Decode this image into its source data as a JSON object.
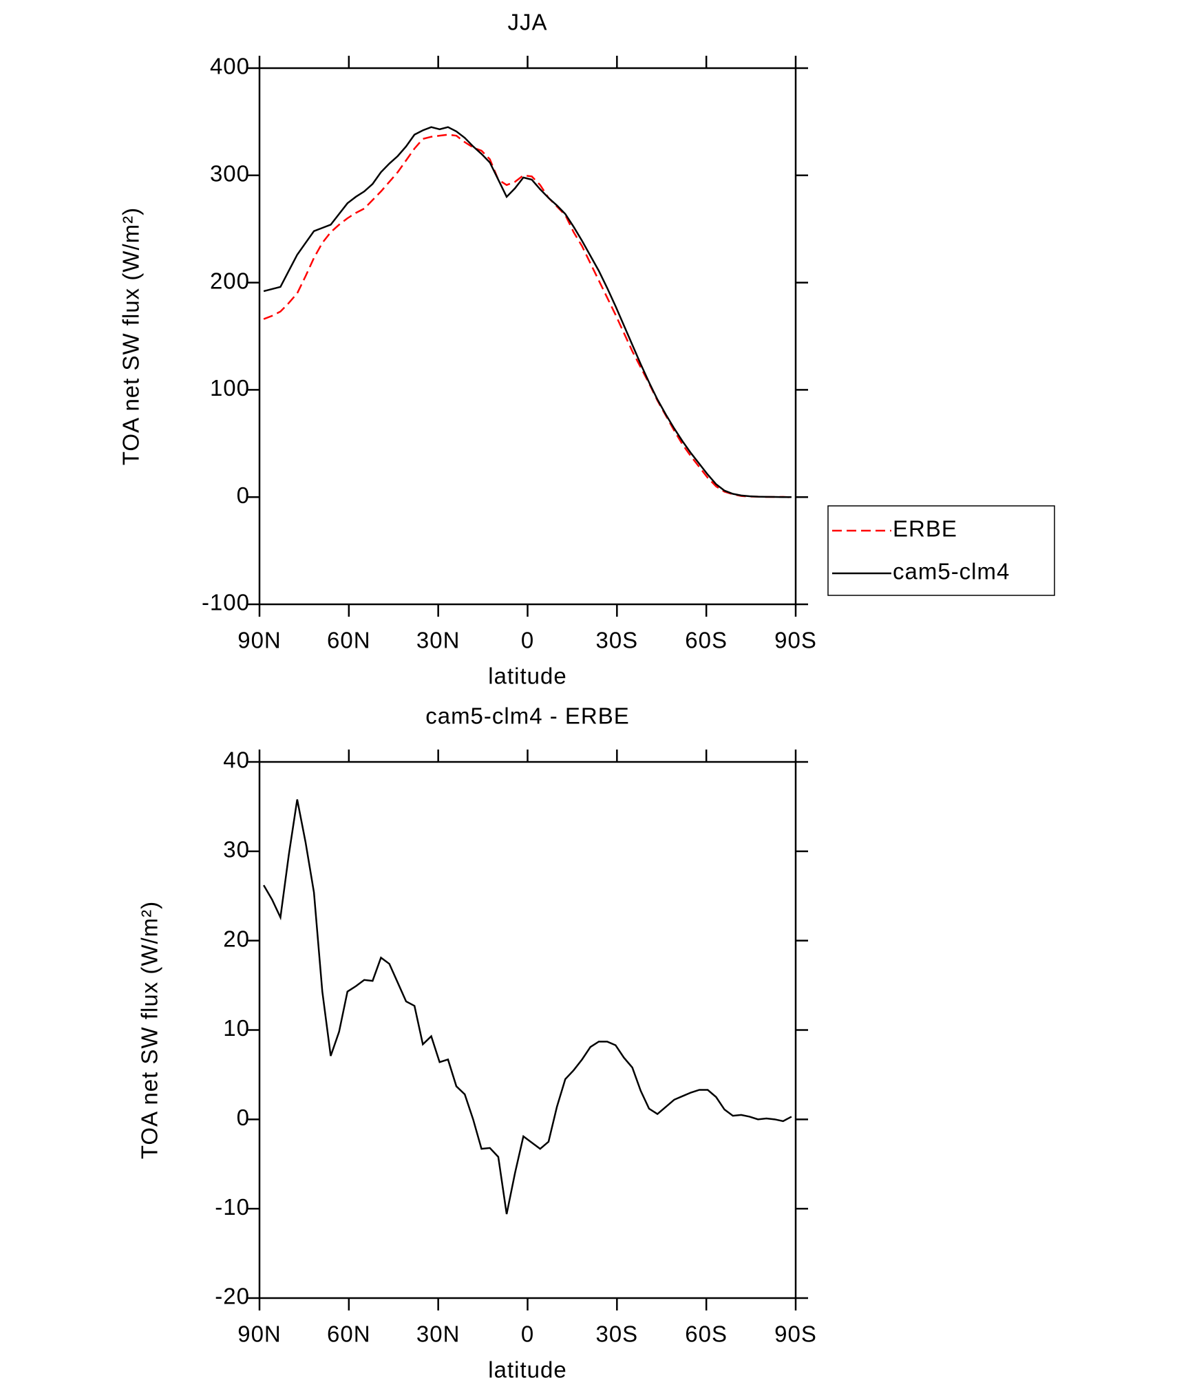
{
  "chart_data": [
    {
      "type": "line",
      "title": "JJA",
      "x_label": "latitude",
      "y_label": "TOA net SW flux (W/m²)",
      "x": [
        88.59,
        85.78,
        82.97,
        80.16,
        77.34,
        74.53,
        71.72,
        68.91,
        66.09,
        63.28,
        60.47,
        57.66,
        54.84,
        52.03,
        49.22,
        46.41,
        43.59,
        40.78,
        37.97,
        35.16,
        32.34,
        29.53,
        26.72,
        23.91,
        21.09,
        18.28,
        15.47,
        12.66,
        9.84,
        7.03,
        4.22,
        1.41,
        -1.41,
        -4.22,
        -7.03,
        -9.84,
        -12.66,
        -15.47,
        -18.28,
        -21.09,
        -23.91,
        -26.72,
        -29.53,
        -32.34,
        -35.16,
        -37.97,
        -40.78,
        -43.59,
        -46.41,
        -49.22,
        -52.03,
        -54.84,
        -57.66,
        -60.47,
        -63.28,
        -66.09,
        -68.91,
        -71.72,
        -74.53,
        -77.34,
        -80.16,
        -82.97,
        -85.78,
        -88.59
      ],
      "series": [
        {
          "name": "ERBE",
          "color": "#ff0000",
          "line_style": "dashed",
          "values": [
            166,
            169,
            173,
            181,
            190,
            206,
            223,
            237,
            247,
            254,
            260,
            265,
            269,
            277,
            285,
            294,
            303,
            314,
            325,
            334,
            336,
            337,
            338,
            337,
            331,
            326,
            323,
            315,
            296,
            291,
            294,
            300,
            299,
            291,
            279,
            271,
            263,
            247,
            234,
            218,
            202,
            186,
            170,
            153,
            136,
            121,
            106,
            90,
            76,
            62,
            49,
            38,
            28,
            18,
            10,
            5,
            2.6,
            1,
            0.5,
            0.4,
            0.1,
            0.1,
            0.2,
            -0.3
          ]
        },
        {
          "name": "cam5-clm4",
          "color": "#000000",
          "line_style": "solid",
          "values": [
            192,
            194,
            196,
            211,
            226,
            237,
            248,
            251,
            254,
            264,
            274,
            280,
            285,
            292,
            303,
            311,
            318,
            327,
            338,
            342,
            345,
            343,
            345,
            341,
            335,
            327,
            320,
            312,
            296,
            280,
            288,
            298,
            296,
            287,
            279,
            272,
            264,
            252,
            239,
            225,
            211,
            195,
            178,
            160,
            142,
            124,
            107,
            91,
            77,
            64,
            52,
            41,
            31,
            21,
            12,
            6,
            3,
            1.5,
            0.8,
            0.4,
            0.2,
            0.1,
            0,
            0
          ]
        }
      ],
      "xlim": [
        90,
        -90
      ],
      "xticks": [
        {
          "value": 90,
          "label": "90N"
        },
        {
          "value": 60,
          "label": "60N"
        },
        {
          "value": 30,
          "label": "30N"
        },
        0,
        {
          "value": -30,
          "label": "30S"
        },
        {
          "value": -60,
          "label": "60S"
        },
        {
          "value": -90,
          "label": "90S"
        }
      ],
      "ylim": [
        -100,
        400
      ],
      "yticks": [
        -100,
        0,
        100,
        200,
        300,
        400
      ],
      "legend": "right"
    },
    {
      "type": "line",
      "title": "cam5-clm4 - ERBE",
      "x_label": "latitude",
      "y_label": "TOA net SW flux (W/m²)",
      "x": [
        88.59,
        85.78,
        82.97,
        80.16,
        77.34,
        74.53,
        71.72,
        68.91,
        66.09,
        63.28,
        60.47,
        57.66,
        54.84,
        52.03,
        49.22,
        46.41,
        43.59,
        40.78,
        37.97,
        35.16,
        32.34,
        29.53,
        26.72,
        23.91,
        21.09,
        18.28,
        15.47,
        12.66,
        9.84,
        7.03,
        4.22,
        1.41,
        -1.41,
        -4.22,
        -7.03,
        -9.84,
        -12.66,
        -15.47,
        -18.28,
        -21.09,
        -23.91,
        -26.72,
        -29.53,
        -32.34,
        -35.16,
        -37.97,
        -40.78,
        -43.59,
        -46.41,
        -49.22,
        -52.03,
        -54.84,
        -57.66,
        -60.47,
        -63.28,
        -66.09,
        -68.91,
        -71.72,
        -74.53,
        -77.34,
        -80.16,
        -82.97,
        -85.78,
        -88.59
      ],
      "color": "#000000",
      "values": [
        26.2,
        24.6,
        22.6,
        29.6,
        35.8,
        31,
        25.4,
        14.3,
        7.1,
        9.8,
        14.3,
        14.9,
        15.6,
        15.5,
        18.1,
        17.4,
        15.3,
        13.2,
        12.7,
        8.4,
        9.3,
        6.4,
        6.7,
        3.7,
        2.8,
        0,
        -3.3,
        -3.2,
        -4.2,
        -10.6,
        -6,
        -1.9,
        -2.6,
        -3.3,
        -2.5,
        1.4,
        4.5,
        5.5,
        6.7,
        8.1,
        8.7,
        8.7,
        8.3,
        6.9,
        5.8,
        3.2,
        1.2,
        0.6,
        1.4,
        2.2,
        2.6,
        3,
        3.3,
        3.3,
        2.5,
        1.1,
        0.4,
        0.5,
        0.3,
        0,
        0.1,
        0,
        -0.2,
        0.3
      ],
      "xlim": [
        90,
        -90
      ],
      "xticks": [
        {
          "value": 90,
          "label": "90N"
        },
        {
          "value": 60,
          "label": "60N"
        },
        {
          "value": 30,
          "label": "30N"
        },
        0,
        {
          "value": -30,
          "label": "30S"
        },
        {
          "value": -60,
          "label": "60S"
        },
        {
          "value": -90,
          "label": "90S"
        }
      ],
      "ylim": [
        -20,
        40
      ],
      "yticks": [
        -20,
        -10,
        0,
        10,
        20,
        30,
        40
      ]
    }
  ]
}
